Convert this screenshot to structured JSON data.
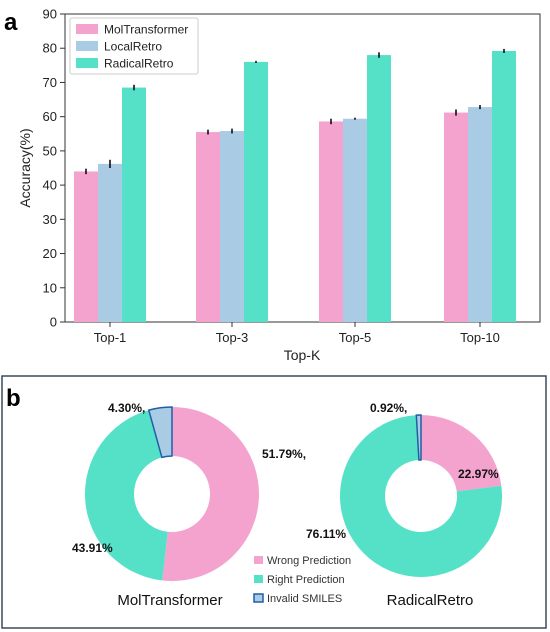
{
  "panel_a": {
    "letter": "a"
  },
  "panel_b": {
    "letter": "b"
  },
  "colors": {
    "molt": "#f4a3cf",
    "local": "#a9cbe4",
    "radical": "#55e1c8",
    "wrong": "#f4a3cf",
    "right": "#55e1c8",
    "invalid": "#a9cbe4",
    "invalid_edge": "#1f5fa6"
  },
  "chart_data": [
    {
      "type": "bar",
      "categories": [
        "Top-1",
        "Top-3",
        "Top-5",
        "Top-10"
      ],
      "series": [
        {
          "name": "MolTransformer",
          "values": [
            44.0,
            55.5,
            58.6,
            61.2
          ],
          "errors": [
            0.8,
            0.7,
            0.8,
            0.9
          ]
        },
        {
          "name": "LocalRetro",
          "values": [
            46.2,
            55.8,
            59.4,
            62.8
          ],
          "errors": [
            1.2,
            0.7,
            0.3,
            0.6
          ]
        },
        {
          "name": "RadicalRetro",
          "values": [
            68.5,
            76.0,
            78.0,
            79.2
          ],
          "errors": [
            0.8,
            0.3,
            0.8,
            0.6
          ]
        }
      ],
      "xlabel": "Top-K",
      "ylabel": "Accuracy(%)",
      "ylim": [
        0,
        90
      ],
      "yticks": [
        "0",
        "10",
        "20",
        "30",
        "40",
        "50",
        "60",
        "70",
        "80",
        "90"
      ],
      "legend": "top-left",
      "grid": false
    },
    {
      "type": "pie",
      "subtype": "donut",
      "title": "MolTransformer",
      "slices": [
        {
          "label": "Wrong Prediction",
          "value": 51.79,
          "display": "51.79%,"
        },
        {
          "label": "Right Prediction",
          "value": 43.91,
          "display": "43.91%"
        },
        {
          "label": "Invalid SMILES",
          "value": 4.3,
          "display": "4.30%,"
        }
      ]
    },
    {
      "type": "pie",
      "subtype": "donut",
      "title": "RadicalRetro",
      "slices": [
        {
          "label": "Wrong Prediction",
          "value": 22.97,
          "display": "22.97%"
        },
        {
          "label": "Right Prediction",
          "value": 76.11,
          "display": "76.11%"
        },
        {
          "label": "Invalid SMILES",
          "value": 0.92,
          "display": "0.92%,"
        }
      ]
    }
  ],
  "donut_legend": [
    "Wrong Prediction",
    "Right Prediction",
    "Invalid SMILES"
  ]
}
